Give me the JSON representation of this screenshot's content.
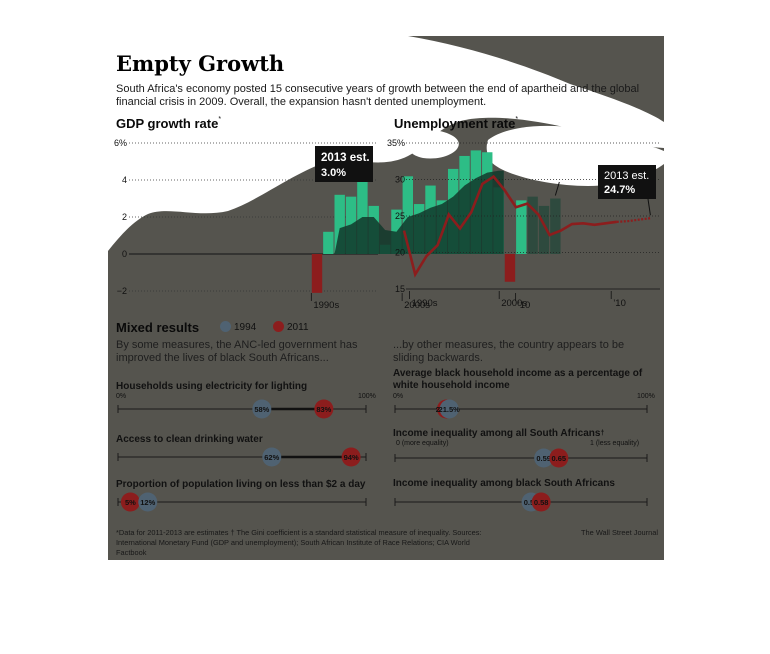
{
  "title": "Empty Growth",
  "subtitle": "South Africa's economy posted 15 consecutive years of growth between the end of apartheid and the global financial crisis in 2009. Overall, the expansion hasn't dented unemployment.",
  "colors": {
    "panel": "#55544e",
    "bar_light": "#2dbd86",
    "bar_dark": "#123a2c",
    "bar_negative": "#8c1d1d",
    "bar_estimate": "#2e4a3e",
    "line_red": "#8c1d1d",
    "dot_1994": "#4f6272",
    "dot_2011": "#8c1d1d"
  },
  "gdp": {
    "title": "GDP growth rate",
    "star": "*",
    "callout": {
      "line1": "2013 est.",
      "line2": "3.0%"
    }
  },
  "unemp": {
    "title": "Unemployment rate",
    "star": "*",
    "callout": {
      "line1": "2013 est.",
      "line2": "24.7%"
    }
  },
  "mixed": {
    "title": "Mixed results",
    "legend": [
      "1994",
      "2011"
    ],
    "left_desc": "By some measures, the ANC-led government has improved the lives of black South Africans...",
    "right_desc": "...by other measures, the country appears to be sliding backwards."
  },
  "dot_rows": [
    {
      "title": "Households using electricity for lighting",
      "axis_left": "0%",
      "axis_right": "100%",
      "v1994_label": "58%",
      "v2011_label": "83%"
    },
    {
      "title": "Access to clean drinking water",
      "v1994_label": "62%",
      "v2011_label": "94%"
    },
    {
      "title": "Proportion of population living on less than $2 a day",
      "v1994_label": "12%",
      "v2011_label": "5%"
    },
    {
      "title": "Average black household income as a percentage of white household income",
      "axis_left": "0%",
      "axis_right": "100%",
      "v1994_label": "21.5%",
      "v2011_label": "20.4%"
    },
    {
      "title": "Income inequality among all South Africans",
      "title_mark": "†",
      "axis_left": "0 (more equality)",
      "axis_right": "1 (less equality)",
      "v1994_label": "0.59",
      "v2011_label": "0.65"
    },
    {
      "title": "Income inequality among black South Africans",
      "v1994_label": "0.54",
      "v2011_label": "0.58"
    }
  ],
  "notes": "*Data for 2011-2013 are estimates  † The Gini coefficient is a standard statistical measure of inequality. Sources: International Monetary Fund (GDP and unemployment); South African Institute of Race Relations; CIA World Factbook",
  "sources": "The Wall Street Journal",
  "chart_data": [
    {
      "type": "bar",
      "title": "GDP growth rate",
      "unit": "%",
      "ylim": [
        -2,
        6
      ],
      "yticks": [
        -2,
        0,
        2,
        4,
        6
      ],
      "ytick_labels": [
        "−2",
        "0",
        "2",
        "4",
        "6%"
      ],
      "xtick_labels": [
        "1990s",
        "2000s",
        "’10"
      ],
      "series": [
        {
          "name": "GDP growth rate",
          "x": [
            1992,
            1993,
            1994,
            1995,
            1996,
            1997,
            1998,
            1999,
            2000,
            2001,
            2002,
            2003,
            2004,
            2005,
            2006,
            2007,
            2008,
            2009,
            2010,
            2011,
            2012,
            2013
          ],
          "values": [
            -2.1,
            1.2,
            3.2,
            3.1,
            4.3,
            2.6,
            0.5,
            2.4,
            4.2,
            2.7,
            3.7,
            2.9,
            4.6,
            5.3,
            5.6,
            5.5,
            3.6,
            -1.5,
            2.9,
            3.1,
            2.6,
            3.0
          ]
        }
      ],
      "annotation": "2013 est. 3.0%"
    },
    {
      "type": "line",
      "title": "Unemployment rate",
      "unit": "%",
      "ylim": [
        15,
        35
      ],
      "yticks": [
        15,
        20,
        25,
        30,
        35
      ],
      "ytick_labels": [
        "15",
        "20",
        "25",
        "30",
        "35%"
      ],
      "xtick_labels": [
        "1990s",
        "2000s",
        "’10"
      ],
      "series": [
        {
          "name": "Unemployment rate",
          "x": [
            1991,
            1992,
            1993,
            1994,
            1995,
            1996,
            1997,
            1998,
            1999,
            2000,
            2001,
            2002,
            2003,
            2004,
            2005,
            2006,
            2007,
            2008,
            2009,
            2010,
            2011,
            2012,
            2013
          ],
          "values": [
            23.0,
            17.0,
            19.5,
            21.0,
            25.2,
            23.3,
            25.5,
            29.4,
            30.4,
            28.5,
            26.2,
            26.7,
            25.2,
            22.4,
            23.0,
            23.9,
            24.0,
            23.8,
            24.0,
            24.2,
            24.3,
            24.5,
            24.7
          ]
        }
      ],
      "annotation": "2013 est. 24.7%"
    },
    {
      "type": "scatter",
      "title": "Mixed results",
      "series_names": [
        "1994",
        "2011"
      ],
      "rows": [
        {
          "label": "Households using electricity for lighting",
          "range": [
            0,
            100
          ],
          "1994": 58,
          "2011": 83
        },
        {
          "label": "Access to clean drinking water",
          "range": [
            0,
            100
          ],
          "1994": 62,
          "2011": 94
        },
        {
          "label": "Proportion of population living on less than $2 a day",
          "range": [
            0,
            100
          ],
          "1994": 12,
          "2011": 5
        },
        {
          "label": "Average black household income as a percentage of white household income",
          "range": [
            0,
            100
          ],
          "1994": 21.5,
          "2011": 20.4
        },
        {
          "label": "Income inequality among all South Africans",
          "range": [
            0,
            1
          ],
          "1994": 0.59,
          "2011": 0.65
        },
        {
          "label": "Income inequality among black South Africans",
          "range": [
            0,
            1
          ],
          "1994": 0.54,
          "2011": 0.58
        }
      ]
    }
  ]
}
